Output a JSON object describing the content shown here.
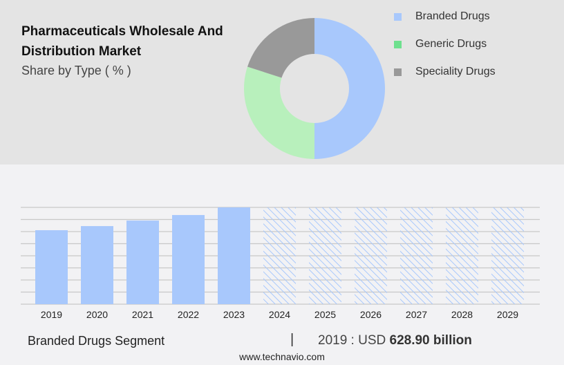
{
  "title": "Pharmaceuticals Wholesale And Distribution Market",
  "subtitle": "Share by Type ( % )",
  "legend": [
    {
      "label": "Branded Drugs",
      "color": "#a8c8fc"
    },
    {
      "label": "Generic Drugs",
      "color": "#6ee08e"
    },
    {
      "label": "Speciality Drugs",
      "color": "#999999"
    }
  ],
  "chart_data": [
    {
      "type": "pie",
      "subtype": "donut",
      "title": "Pharmaceuticals Wholesale And Distribution Market",
      "subtitle": "Share by Type ( % )",
      "categories": [
        "Branded Drugs",
        "Generic Drugs",
        "Speciality Drugs"
      ],
      "values": [
        50,
        30,
        20
      ],
      "colors": [
        "#a8c8fc",
        "#b8f0bc",
        "#999999"
      ],
      "legend": "right"
    },
    {
      "type": "bar",
      "categories": [
        "2019",
        "2020",
        "2021",
        "2022",
        "2023",
        "2024",
        "2025",
        "2026",
        "2027",
        "2028",
        "2029"
      ],
      "values": [
        628.9,
        664,
        711,
        758,
        823,
        null,
        null,
        null,
        null,
        null,
        null
      ],
      "forecast_hatched": [
        "2024",
        "2025",
        "2026",
        "2027",
        "2028",
        "2029"
      ],
      "ylim": [
        0,
        823
      ],
      "grid": true,
      "color": "#a8c8fc"
    }
  ],
  "footer": {
    "segment": "Branded Drugs Segment",
    "separator": "|",
    "value_prefix": "2019 : USD",
    "value": "628.90 billion",
    "source": "www.technavio.com"
  }
}
